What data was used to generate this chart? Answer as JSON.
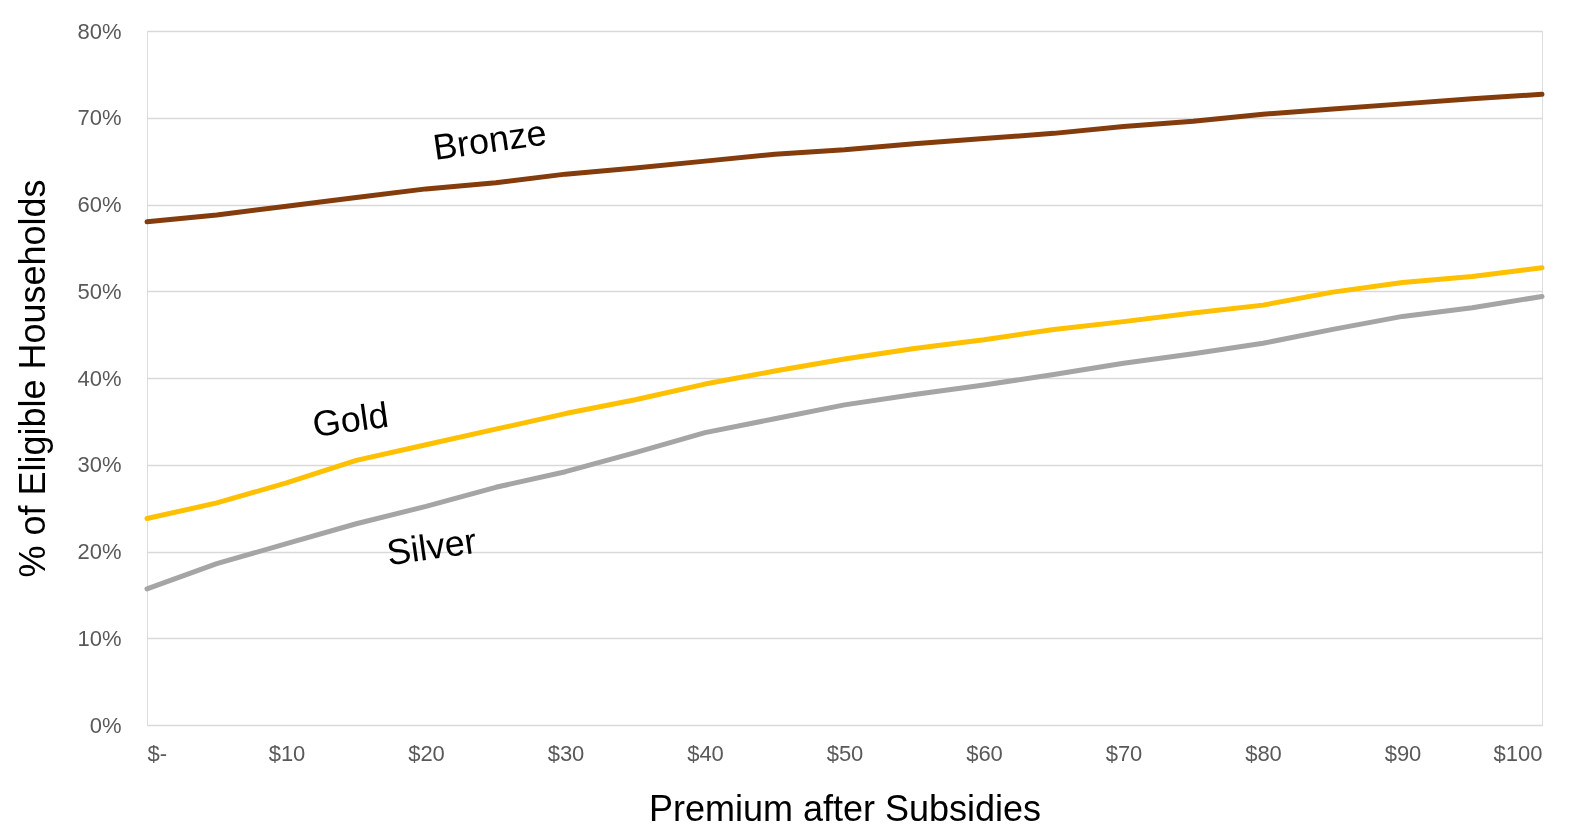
{
  "chart_data": {
    "type": "line",
    "xlabel": "Premium after Subsidies",
    "ylabel": "% of Eligible Households",
    "x": [
      0,
      5,
      10,
      15,
      20,
      25,
      30,
      35,
      40,
      45,
      50,
      55,
      60,
      65,
      70,
      75,
      80,
      85,
      90,
      95,
      100
    ],
    "series": [
      {
        "name": "Bronze",
        "color": "#843c0c",
        "values": [
          58.0,
          58.8,
          59.8,
          60.8,
          61.8,
          62.5,
          63.5,
          64.2,
          65.0,
          65.8,
          66.3,
          67.0,
          67.6,
          68.2,
          69.0,
          69.6,
          70.4,
          71.0,
          71.6,
          72.2,
          72.7
        ]
      },
      {
        "name": "Gold",
        "color": "#ffc000",
        "values": [
          23.8,
          25.6,
          27.9,
          30.5,
          32.3,
          34.1,
          35.9,
          37.5,
          39.3,
          40.8,
          42.2,
          43.4,
          44.4,
          45.6,
          46.5,
          47.5,
          48.4,
          49.9,
          51.0,
          51.7,
          52.7
        ]
      },
      {
        "name": "Silver",
        "color": "#a5a5a5",
        "values": [
          15.7,
          18.6,
          20.9,
          23.2,
          25.2,
          27.4,
          29.2,
          31.4,
          33.7,
          35.3,
          36.9,
          38.1,
          39.2,
          40.4,
          41.7,
          42.8,
          44.0,
          45.6,
          47.1,
          48.1,
          49.4
        ]
      }
    ],
    "xlim": [
      0,
      100
    ],
    "xticks": [
      {
        "value": 0,
        "label": "$-"
      },
      {
        "value": 10,
        "label": "$10"
      },
      {
        "value": 20,
        "label": "$20"
      },
      {
        "value": 30,
        "label": "$30"
      },
      {
        "value": 40,
        "label": "$40"
      },
      {
        "value": 50,
        "label": "$50"
      },
      {
        "value": 60,
        "label": "$60"
      },
      {
        "value": 70,
        "label": "$70"
      },
      {
        "value": 80,
        "label": "$80"
      },
      {
        "value": 90,
        "label": "$90"
      },
      {
        "value": 100,
        "label": "$100"
      }
    ],
    "ylim": [
      0,
      80
    ],
    "yticks": [
      {
        "value": 0,
        "label": "0%"
      },
      {
        "value": 10,
        "label": "10%"
      },
      {
        "value": 20,
        "label": "20%"
      },
      {
        "value": 30,
        "label": "30%"
      },
      {
        "value": 40,
        "label": "40%"
      },
      {
        "value": 50,
        "label": "50%"
      },
      {
        "value": 60,
        "label": "60%"
      },
      {
        "value": 70,
        "label": "70%"
      },
      {
        "value": 80,
        "label": "80%"
      }
    ],
    "grid": "y",
    "marker": "none",
    "line_style": "solid",
    "legend": false
  }
}
